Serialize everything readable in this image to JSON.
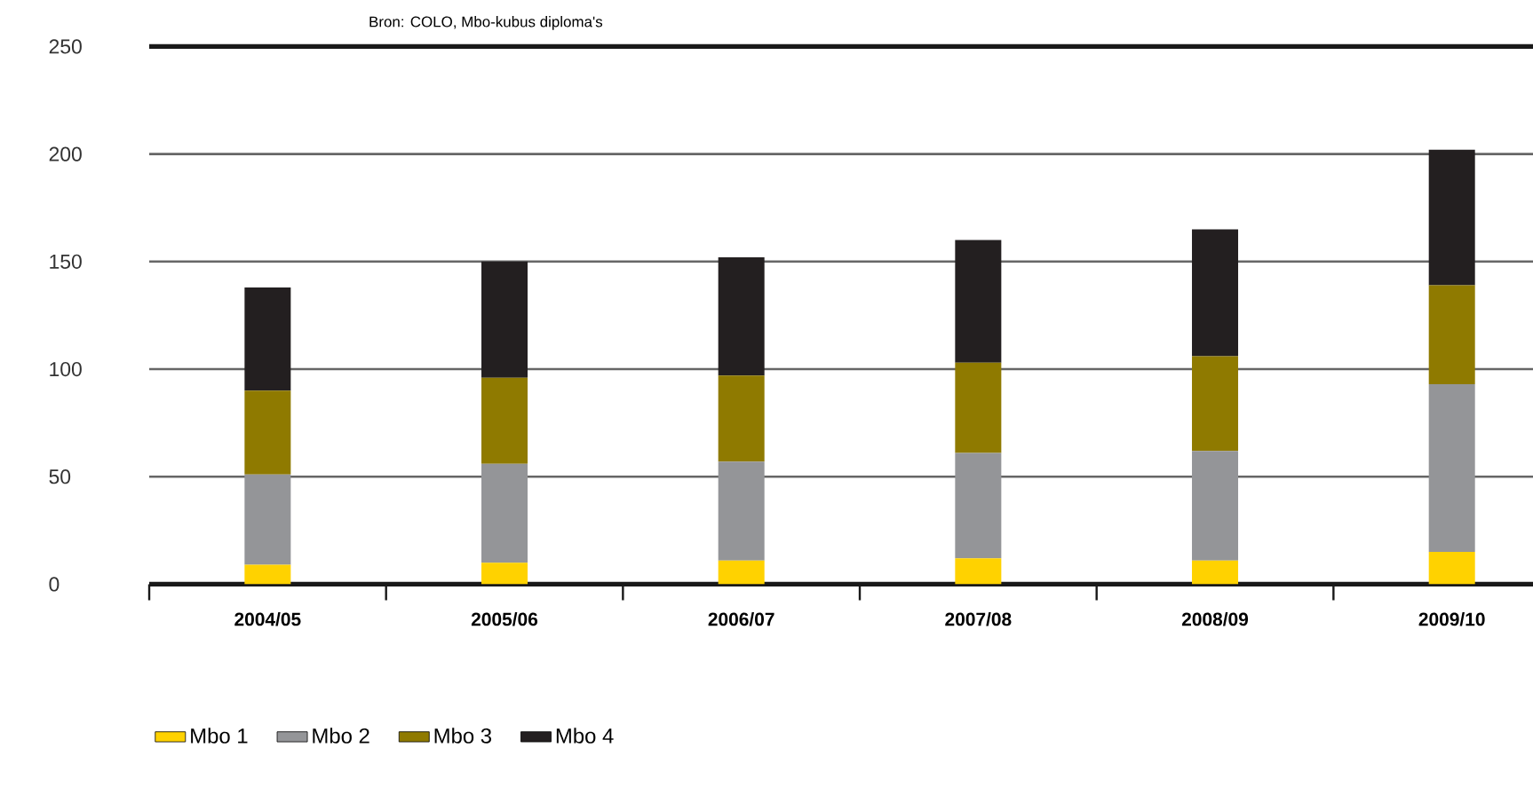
{
  "chart_data": {
    "type": "bar",
    "stacked": true,
    "annotations": [
      "Bron: COLO, Mbo-kubus diploma's"
    ],
    "categories": [
      "2004/05",
      "2005/06",
      "2006/07",
      "2007/08",
      "2008/09",
      "2009/10"
    ],
    "series": [
      {
        "name": "Mbo 1",
        "color": "#ffd200",
        "values": [
          9,
          10,
          11,
          12,
          11,
          15
        ]
      },
      {
        "name": "Mbo 2",
        "color": "#949598",
        "values": [
          42,
          46,
          46,
          49,
          51,
          78
        ]
      },
      {
        "name": "Mbo 3",
        "color": "#8f7a00",
        "values": [
          39,
          40,
          40,
          42,
          44,
          46
        ]
      },
      {
        "name": "Mbo 4",
        "color": "#231f20",
        "values": [
          48,
          54,
          55,
          57,
          59,
          63
        ]
      }
    ],
    "ylim": [
      0,
      250
    ],
    "yticks": [
      0,
      50,
      100,
      150,
      200,
      250
    ],
    "grid": "y",
    "legend": "bottom"
  }
}
